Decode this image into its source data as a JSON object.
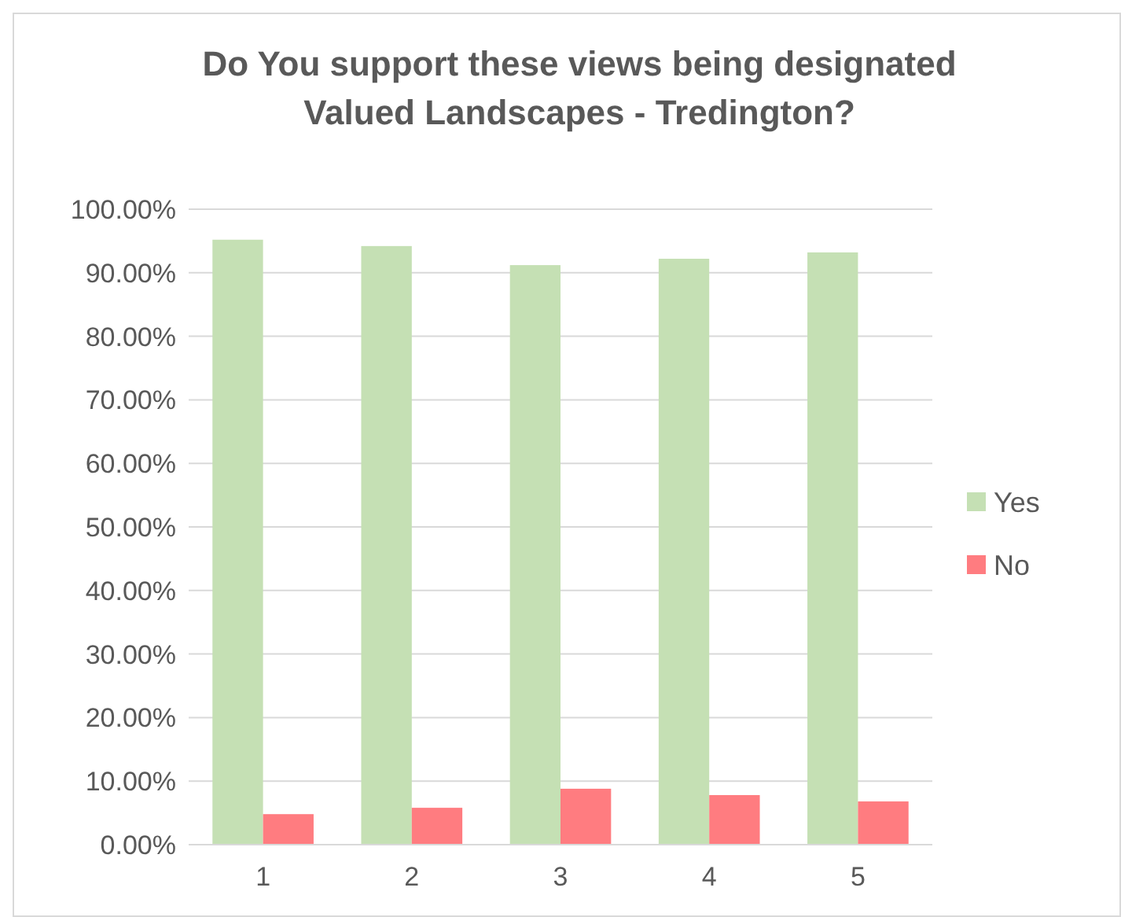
{
  "chart_data": {
    "type": "bar",
    "title": "Do You support these views being designated Valued Landscapes - Tredington?",
    "categories": [
      "1",
      "2",
      "3",
      "4",
      "5"
    ],
    "series": [
      {
        "name": "Yes",
        "color": "#c5e0b4",
        "values": [
          95.2,
          94.2,
          91.2,
          92.2,
          93.2
        ]
      },
      {
        "name": "No",
        "color": "#ff7c80",
        "values": [
          4.8,
          5.8,
          8.8,
          7.8,
          6.8
        ]
      }
    ],
    "ylim": [
      0,
      100
    ],
    "yticks": [
      {
        "value": 0,
        "label": "0.00%"
      },
      {
        "value": 10,
        "label": "10.00%"
      },
      {
        "value": 20,
        "label": "20.00%"
      },
      {
        "value": 30,
        "label": "30.00%"
      },
      {
        "value": 40,
        "label": "40.00%"
      },
      {
        "value": 50,
        "label": "50.00%"
      },
      {
        "value": 60,
        "label": "60.00%"
      },
      {
        "value": 70,
        "label": "70.00%"
      },
      {
        "value": 80,
        "label": "80.00%"
      },
      {
        "value": 90,
        "label": "90.00%"
      },
      {
        "value": 100,
        "label": "100.00%"
      }
    ],
    "grid": "y",
    "legend": "right"
  }
}
